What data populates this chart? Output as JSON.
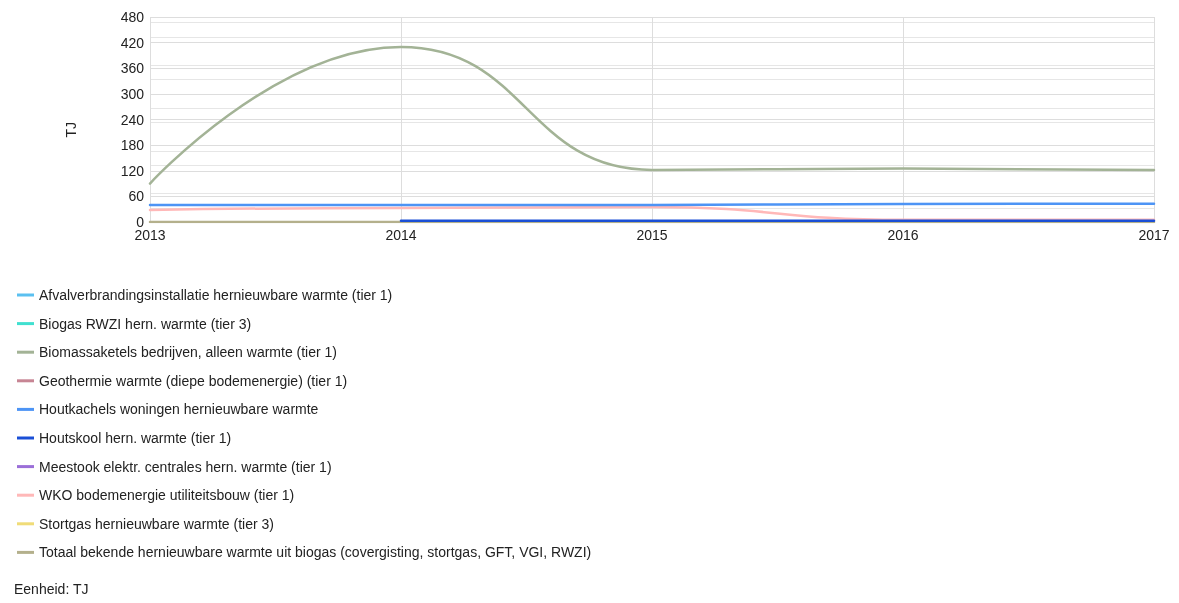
{
  "chart_data": {
    "type": "line",
    "ylabel": "TJ",
    "x": [
      2013,
      2014,
      2015,
      2016,
      2017
    ],
    "xlim": [
      2013,
      2017
    ],
    "xticks": [
      2013,
      2014,
      2015,
      2016,
      2017
    ],
    "ylim": [
      0,
      480
    ],
    "yticks": [
      0,
      60,
      120,
      180,
      240,
      300,
      360,
      420,
      480
    ],
    "grid": true,
    "legend": "bottom",
    "marker": "none",
    "line_style": "solid",
    "annotations": [
      "Eenheid: TJ"
    ],
    "series": [
      {
        "name": "Afvalverbrandingsinstallatie hernieuwbare warmte (tier 1)",
        "color": "#5bc0f0",
        "values": [
          null,
          null,
          null,
          null,
          null
        ]
      },
      {
        "name": "Biogas RWZI hern. warmte (tier 3)",
        "color": "#40e0d0",
        "values": [
          null,
          null,
          null,
          null,
          null
        ]
      },
      {
        "name": "Biomassaketels bedrijven, alleen warmte (tier 1)",
        "color": "#a3b396",
        "values": [
          90,
          410,
          122,
          125,
          122
        ]
      },
      {
        "name": "Geothermie warmte (diepe bodemenergie) (tier 1)",
        "color": "#c78594",
        "values": [
          null,
          null,
          null,
          null,
          null
        ]
      },
      {
        "name": "Houtkachels woningen hernieuwbare warmte",
        "color": "#4d94f5",
        "values": [
          40,
          40,
          40,
          42,
          43
        ]
      },
      {
        "name": "Houtskool hern. warmte (tier 1)",
        "color": "#1a4fd6",
        "values": [
          null,
          3,
          3,
          3,
          3
        ]
      },
      {
        "name": "Meestook elektr. centrales hern. warmte (tier 1)",
        "color": "#9b6fd8",
        "values": [
          null,
          null,
          null,
          null,
          null
        ]
      },
      {
        "name": "WKO bodemenergie utiliteitsbouw (tier 1)",
        "color": "#ffb8b8",
        "values": [
          28,
          33,
          35,
          5,
          5
        ]
      },
      {
        "name": "Stortgas hernieuwbare warmte (tier 3)",
        "color": "#f0dc78",
        "values": [
          null,
          null,
          null,
          null,
          null
        ]
      },
      {
        "name": "Totaal bekende hernieuwbare warmte uit biogas (covergisting, stortgas, GFT, VGI, RWZI)",
        "color": "#b4b08c",
        "values": [
          0,
          0,
          0,
          0,
          0
        ]
      }
    ]
  }
}
